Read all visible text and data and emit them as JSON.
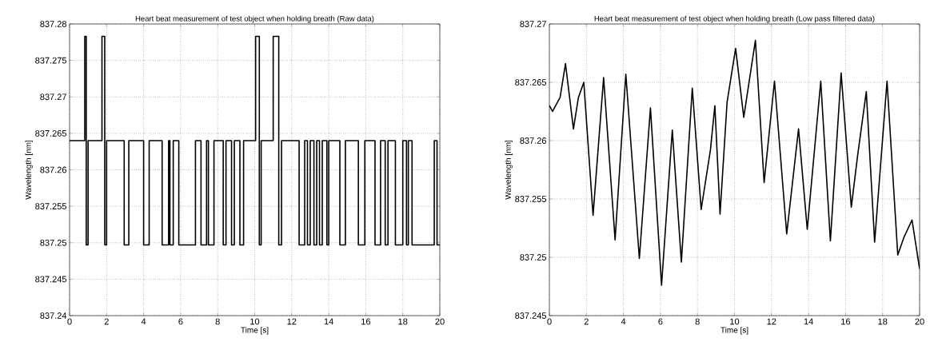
{
  "chart_data": [
    {
      "type": "step",
      "title": "Heart beat measurement of test object when holding breath (Raw data)",
      "xlabel": "Time [s]",
      "ylabel": "Wavelength [nm]",
      "color": "#000000",
      "grid": true,
      "x": [
        0,
        0.82,
        0.9,
        1.0,
        1.75,
        1.9,
        2.0,
        2.95,
        3.2,
        4.0,
        4.3,
        5.0,
        5.35,
        5.42,
        5.6,
        5.9,
        6.8,
        7.1,
        7.4,
        7.5,
        7.8,
        8.3,
        8.45,
        8.75,
        8.9,
        9.2,
        9.4,
        10.05,
        10.25,
        10.35,
        11.0,
        11.3,
        11.45,
        12.4,
        12.7,
        12.85,
        13.0,
        13.2,
        13.35,
        13.5,
        13.65,
        13.9,
        14.0,
        14.6,
        14.9,
        15.6,
        15.95,
        16.5,
        16.8,
        17.05,
        17.2,
        17.6,
        18.0,
        18.2,
        18.3,
        18.5,
        19.7,
        19.85,
        20
      ],
      "values": [
        837.264,
        837.2783,
        837.2497,
        837.264,
        837.2783,
        837.2497,
        837.264,
        837.2497,
        837.264,
        837.2497,
        837.264,
        837.2497,
        837.264,
        837.2497,
        837.264,
        837.2497,
        837.264,
        837.2497,
        837.264,
        837.2497,
        837.264,
        837.2497,
        837.264,
        837.2497,
        837.264,
        837.2497,
        837.264,
        837.2783,
        837.2497,
        837.264,
        837.2783,
        837.2497,
        837.264,
        837.2497,
        837.264,
        837.2497,
        837.264,
        837.2497,
        837.264,
        837.2497,
        837.264,
        837.2497,
        837.264,
        837.2497,
        837.264,
        837.2497,
        837.264,
        837.2497,
        837.264,
        837.2497,
        837.264,
        837.2497,
        837.264,
        837.2497,
        837.264,
        837.2497,
        837.264,
        837.2497,
        837.2497
      ],
      "xlim": [
        0,
        20
      ],
      "xticks": [
        0,
        2,
        4,
        6,
        8,
        10,
        12,
        14,
        16,
        18,
        20
      ],
      "ylim": [
        837.24,
        837.28
      ],
      "yticks": [
        837.24,
        837.245,
        837.25,
        837.255,
        837.26,
        837.265,
        837.27,
        837.275,
        837.28
      ]
    },
    {
      "type": "line",
      "title": "Heart beat measurement of test object when holding breath (Low pass filtered data)",
      "xlabel": "Time [s]",
      "ylabel": "Wavelength [nm]",
      "color": "#000000",
      "grid": true,
      "x": [
        0,
        0.17,
        0.58,
        0.87,
        1.3,
        1.57,
        1.86,
        2.36,
        2.93,
        3.55,
        4.13,
        4.86,
        5.46,
        6.06,
        6.64,
        7.13,
        7.72,
        8.2,
        8.7,
        8.94,
        9.22,
        9.6,
        10.06,
        10.5,
        11.13,
        11.6,
        12.16,
        12.82,
        13.46,
        13.93,
        14.66,
        15.18,
        15.76,
        16.31,
        16.65,
        17.12,
        17.57,
        18.24,
        18.82,
        19.15,
        19.59,
        20
      ],
      "values": [
        837.263,
        837.2625,
        837.2637,
        837.2666,
        837.261,
        837.2637,
        837.265,
        837.2536,
        837.2654,
        837.2515,
        837.2657,
        837.2499,
        837.2628,
        837.2476,
        837.2609,
        837.2496,
        837.2645,
        837.2541,
        837.2592,
        837.263,
        837.2537,
        837.2633,
        837.2679,
        837.262,
        837.2686,
        837.2564,
        837.2651,
        837.252,
        837.261,
        837.2524,
        837.2651,
        837.2514,
        837.2658,
        837.2543,
        837.2587,
        837.2642,
        837.2513,
        837.2651,
        837.2502,
        837.2517,
        837.2532,
        837.249
      ],
      "xlim": [
        0,
        20
      ],
      "xticks": [
        0,
        2,
        4,
        6,
        8,
        10,
        12,
        14,
        16,
        18,
        20
      ],
      "ylim": [
        837.245,
        837.27
      ],
      "yticks": [
        837.245,
        837.25,
        837.255,
        837.26,
        837.265,
        837.27
      ]
    }
  ]
}
